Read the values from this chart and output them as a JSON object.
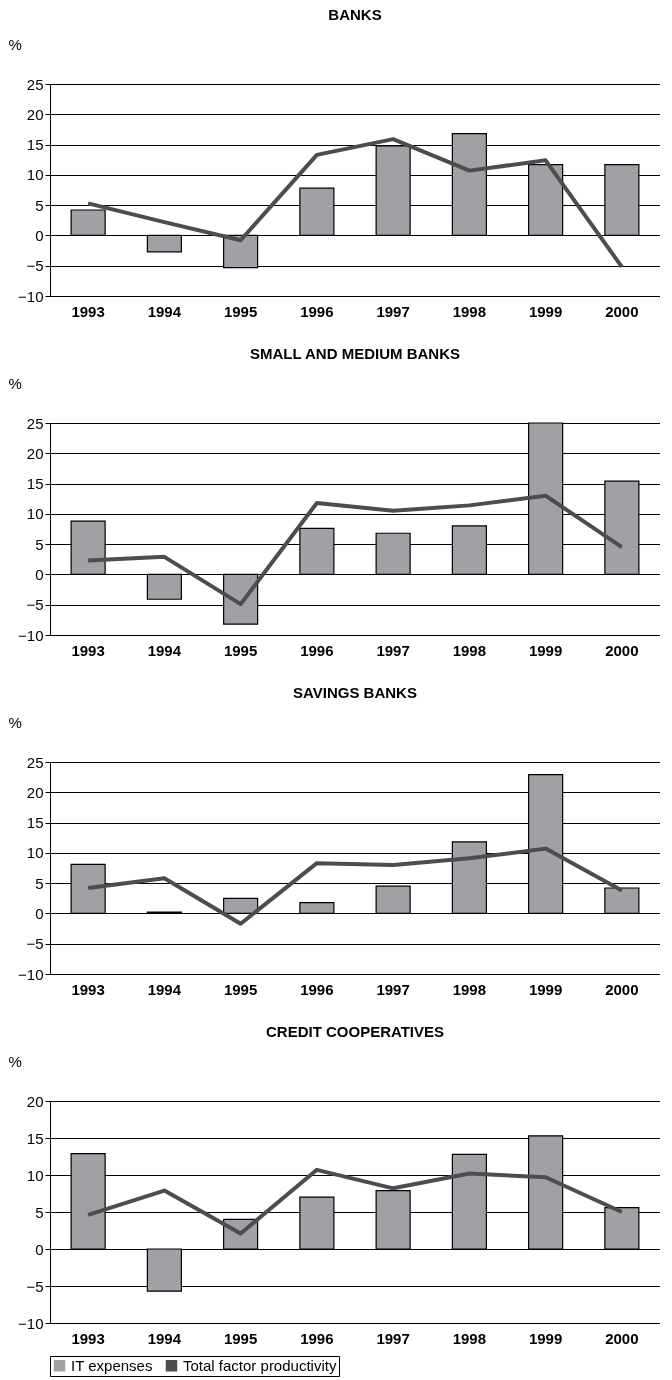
{
  "chart_data": [
    {
      "type": "bar",
      "title": "BANKS",
      "ylabel": "%",
      "categories": [
        "1993",
        "1994",
        "1995",
        "1996",
        "1997",
        "1998",
        "1999",
        "2000"
      ],
      "ylim": [
        -10,
        25
      ],
      "yticks": [
        -10,
        -5,
        0,
        5,
        10,
        15,
        20,
        25
      ],
      "grid": "y",
      "series": [
        {
          "color": "#a0a1a5",
          "values": [
            4.2,
            -2.7,
            -5.3,
            7.8,
            14.8,
            16.8,
            11.7,
            11.7
          ]
        },
        {
          "type": "line",
          "color": "#4d4d4f",
          "values": [
            5.3,
            2.2,
            -0.8,
            13.3,
            15.9,
            10.7,
            12.4,
            -5.2
          ]
        }
      ]
    },
    {
      "type": "bar",
      "title": "SMALL AND MEDIUM BANKS",
      "ylabel": "%",
      "categories": [
        "1993",
        "1994",
        "1995",
        "1996",
        "1997",
        "1998",
        "1999",
        "2000"
      ],
      "ylim": [
        -10,
        25
      ],
      "yticks": [
        -10,
        -5,
        0,
        5,
        10,
        15,
        20,
        25
      ],
      "grid": "y",
      "series": [
        {
          "color": "#a0a1a5",
          "values": [
            8.8,
            -4.1,
            -8.2,
            7.6,
            6.8,
            8.0,
            25.0,
            15.4
          ]
        },
        {
          "type": "line",
          "color": "#4d4d4f",
          "values": [
            2.3,
            2.9,
            -4.9,
            11.8,
            10.5,
            11.4,
            13.0,
            4.5
          ]
        }
      ]
    },
    {
      "type": "bar",
      "title": "SAVINGS BANKS",
      "ylabel": "%",
      "categories": [
        "1993",
        "1994",
        "1995",
        "1996",
        "1997",
        "1998",
        "1999",
        "2000"
      ],
      "ylim": [
        -10,
        25
      ],
      "yticks": [
        -10,
        -5,
        0,
        5,
        10,
        15,
        20,
        25
      ],
      "grid": "y",
      "series": [
        {
          "color": "#a0a1a5",
          "values": [
            8.1,
            0.2,
            2.5,
            1.8,
            4.5,
            11.8,
            22.9,
            4.2
          ]
        },
        {
          "type": "line",
          "color": "#4d4d4f",
          "values": [
            4.2,
            5.8,
            -1.7,
            8.3,
            8.0,
            9.1,
            10.7,
            3.8
          ]
        }
      ]
    },
    {
      "type": "bar",
      "title": "CREDIT COOPERATIVES",
      "ylabel": "%",
      "categories": [
        "1993",
        "1994",
        "1995",
        "1996",
        "1997",
        "1998",
        "1999",
        "2000"
      ],
      "ylim": [
        -10,
        20
      ],
      "yticks": [
        -10,
        -5,
        0,
        5,
        10,
        15,
        20
      ],
      "grid": "y",
      "legend": "bottom",
      "series": [
        {
          "name": "IT expenses",
          "color": "#a0a1a5",
          "values": [
            12.9,
            -5.7,
            4.0,
            7.0,
            7.9,
            12.8,
            15.3,
            5.6
          ]
        },
        {
          "type": "line",
          "name": "Total factor productivity",
          "color": "#4d4d4f",
          "values": [
            4.6,
            7.9,
            2.1,
            10.7,
            8.2,
            10.2,
            9.7,
            5.0
          ]
        }
      ]
    }
  ]
}
